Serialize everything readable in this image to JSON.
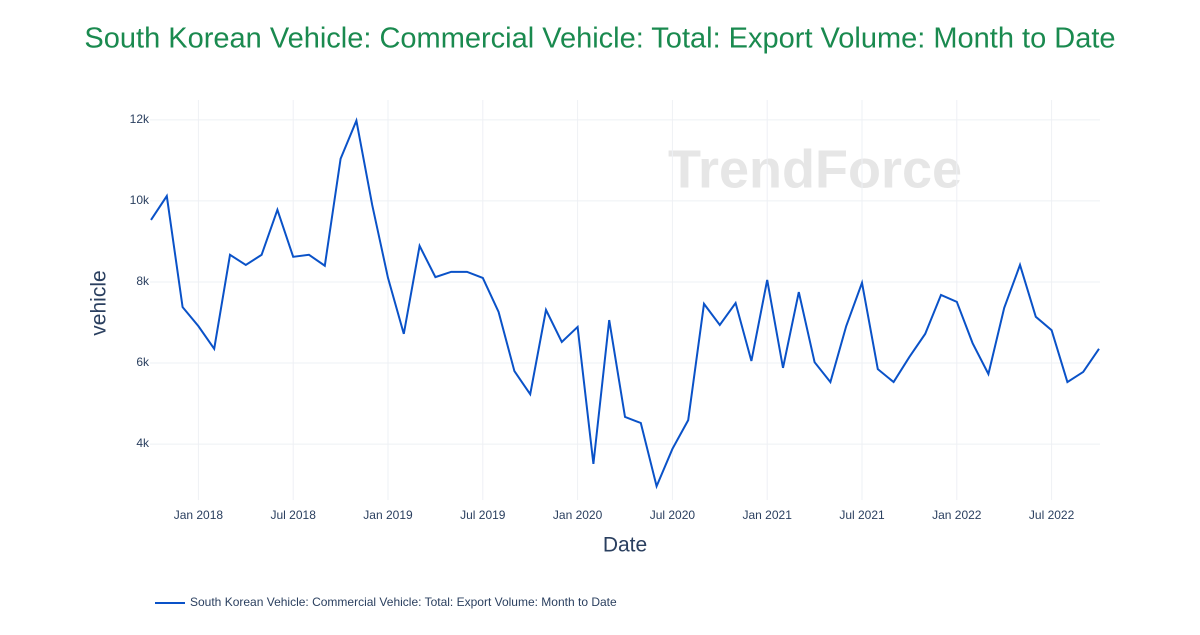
{
  "chart_data": {
    "type": "line",
    "title": "South Korean Vehicle: Commercial Vehicle: Total: Export Volume: Month to Date",
    "xlabel": "Date",
    "ylabel": "vehicle",
    "watermark": "TrendForce",
    "x": [
      "2017-10",
      "2017-11",
      "2017-12",
      "2018-01",
      "2018-02",
      "2018-03",
      "2018-04",
      "2018-05",
      "2018-06",
      "2018-07",
      "2018-08",
      "2018-09",
      "2018-10",
      "2018-11",
      "2018-12",
      "2019-01",
      "2019-02",
      "2019-03",
      "2019-04",
      "2019-05",
      "2019-06",
      "2019-07",
      "2019-08",
      "2019-09",
      "2019-10",
      "2019-11",
      "2019-12",
      "2020-01",
      "2020-02",
      "2020-03",
      "2020-04",
      "2020-05",
      "2020-06",
      "2020-07",
      "2020-08",
      "2020-09",
      "2020-10",
      "2020-11",
      "2020-12",
      "2021-01",
      "2021-02",
      "2021-03",
      "2021-04",
      "2021-05",
      "2021-06",
      "2021-07",
      "2021-08",
      "2021-09",
      "2021-10",
      "2021-11",
      "2021-12",
      "2022-01",
      "2022-02",
      "2022-03",
      "2022-04",
      "2022-05",
      "2022-06",
      "2022-07",
      "2022-08",
      "2022-09",
      "2022-10"
    ],
    "series": [
      {
        "name": "South Korean Vehicle: Commercial Vehicle: Total: Export Volume: Month to Date",
        "color": "#0a52c8",
        "values": [
          9530,
          10120,
          7380,
          6910,
          6350,
          8670,
          8420,
          8670,
          9780,
          8620,
          8670,
          8400,
          11040,
          11980,
          9900,
          8100,
          6720,
          8890,
          8120,
          8250,
          8250,
          8100,
          7260,
          5800,
          5230,
          7310,
          6520,
          6890,
          3510,
          7060,
          4670,
          4520,
          2960,
          3880,
          4590,
          7460,
          6940,
          7480,
          6050,
          8050,
          5880,
          7750,
          6020,
          5530,
          6910,
          7980,
          5850,
          5530,
          6150,
          6720,
          7680,
          7510,
          6490,
          5730,
          7360,
          8420,
          7140,
          6810,
          5530,
          5780,
          6350
        ]
      }
    ],
    "xlim": [
      "2017-10",
      "2022-10"
    ],
    "xticks": [
      {
        "value": "2018-01",
        "label": "Jan 2018"
      },
      {
        "value": "2018-07",
        "label": "Jul 2018"
      },
      {
        "value": "2019-01",
        "label": "Jan 2019"
      },
      {
        "value": "2019-07",
        "label": "Jul 2019"
      },
      {
        "value": "2020-01",
        "label": "Jan 2020"
      },
      {
        "value": "2020-07",
        "label": "Jul 2020"
      },
      {
        "value": "2021-01",
        "label": "Jan 2021"
      },
      {
        "value": "2021-07",
        "label": "Jul 2021"
      },
      {
        "value": "2022-01",
        "label": "Jan 2022"
      },
      {
        "value": "2022-07",
        "label": "Jul 2022"
      }
    ],
    "ylim": [
      2620,
      12490
    ],
    "yticks": [
      {
        "value": 4000,
        "label": "4k"
      },
      {
        "value": 6000,
        "label": "6k"
      },
      {
        "value": 8000,
        "label": "8k"
      },
      {
        "value": 10000,
        "label": "10k"
      },
      {
        "value": 12000,
        "label": "12k"
      }
    ],
    "grid": true,
    "legend": "bottom-left"
  }
}
